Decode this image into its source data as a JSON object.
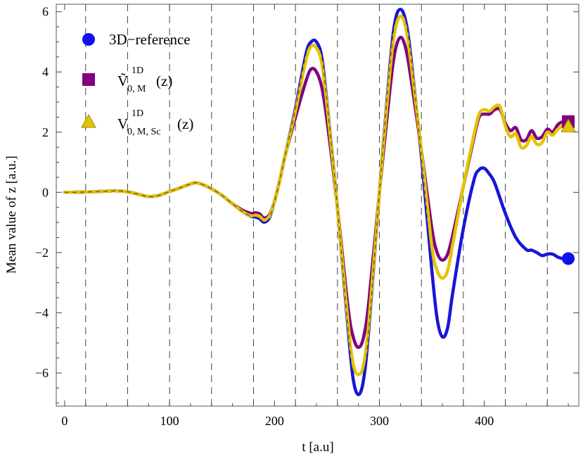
{
  "chart_data": {
    "type": "line",
    "xlabel": "t  [a.u]",
    "ylabel": "Mean  value  of  z    [a.u.]",
    "xlim": [
      -8,
      490
    ],
    "ylim": [
      -7.1,
      6.25
    ],
    "x_ticks": [
      0,
      100,
      200,
      300,
      400
    ],
    "y_ticks": [
      -6,
      -4,
      -2,
      0,
      2,
      4,
      6
    ],
    "x_tick_labels": [
      "0",
      "100",
      "200",
      "300",
      "400"
    ],
    "y_tick_labels": [
      "−6",
      "−4",
      "−2",
      "0",
      "2",
      "4",
      "6"
    ],
    "vertical_dashed_lines": [
      20,
      60,
      100,
      140,
      180,
      220,
      260,
      300,
      340,
      380,
      420,
      460
    ],
    "grid": false,
    "legend": {
      "placement": "top-left",
      "entries": [
        {
          "marker": "circle",
          "color": "#1010ee",
          "text": "3D−reference"
        },
        {
          "marker": "square",
          "color": "#800080",
          "base": "Ṽ",
          "sup": "1D",
          "sub": "0, M",
          "suffix": "(z)"
        },
        {
          "marker": "triangle",
          "color": "#e3c400",
          "base": "V",
          "sup": "1D",
          "sub": "0, M, Sc",
          "suffix": "(z)"
        }
      ]
    },
    "series": [
      {
        "name": "3D−reference",
        "color": "#1010ee",
        "marker": "circle",
        "points": [
          [
            0,
            0
          ],
          [
            20,
            0.01
          ],
          [
            40,
            0.04
          ],
          [
            50,
            0.05
          ],
          [
            60,
            0.02
          ],
          [
            70,
            -0.06
          ],
          [
            80,
            -0.14
          ],
          [
            90,
            -0.1
          ],
          [
            100,
            0.03
          ],
          [
            110,
            0.15
          ],
          [
            120,
            0.28
          ],
          [
            125,
            0.32
          ],
          [
            130,
            0.28
          ],
          [
            140,
            0.12
          ],
          [
            150,
            -0.1
          ],
          [
            160,
            -0.38
          ],
          [
            170,
            -0.65
          ],
          [
            178,
            -0.8
          ],
          [
            182,
            -0.82
          ],
          [
            186,
            -0.88
          ],
          [
            190,
            -0.99
          ],
          [
            195,
            -0.85
          ],
          [
            200,
            -0.3
          ],
          [
            205,
            0.4
          ],
          [
            210,
            1.2
          ],
          [
            220,
            2.8
          ],
          [
            230,
            4.6
          ],
          [
            235,
            5.0
          ],
          [
            240,
            5.0
          ],
          [
            245,
            4.5
          ],
          [
            250,
            3.0
          ],
          [
            260,
            -0.5
          ],
          [
            270,
            -4.5
          ],
          [
            275,
            -6.2
          ],
          [
            280,
            -6.72
          ],
          [
            285,
            -6.2
          ],
          [
            290,
            -4.5
          ],
          [
            300,
            0.0
          ],
          [
            310,
            4.2
          ],
          [
            315,
            5.7
          ],
          [
            320,
            6.08
          ],
          [
            325,
            5.7
          ],
          [
            330,
            4.5
          ],
          [
            340,
            1.2
          ],
          [
            350,
            -2.6
          ],
          [
            355,
            -4.2
          ],
          [
            360,
            -4.8
          ],
          [
            365,
            -4.5
          ],
          [
            370,
            -3.3
          ],
          [
            380,
            -1.2
          ],
          [
            390,
            0.4
          ],
          [
            395,
            0.75
          ],
          [
            400,
            0.8
          ],
          [
            405,
            0.6
          ],
          [
            410,
            0.3
          ],
          [
            420,
            -0.7
          ],
          [
            430,
            -1.5
          ],
          [
            440,
            -1.9
          ],
          [
            445,
            -1.92
          ],
          [
            450,
            -2.0
          ],
          [
            455,
            -2.1
          ],
          [
            460,
            -2.05
          ],
          [
            465,
            -2.05
          ],
          [
            470,
            -2.15
          ],
          [
            475,
            -2.2
          ],
          [
            480,
            -2.2
          ]
        ]
      },
      {
        "name": "Ṽ 1D 0, M (z)",
        "color": "#800080",
        "marker": "square",
        "points": [
          [
            0,
            0
          ],
          [
            20,
            0.01
          ],
          [
            40,
            0.04
          ],
          [
            50,
            0.05
          ],
          [
            60,
            0.02
          ],
          [
            70,
            -0.06
          ],
          [
            80,
            -0.14
          ],
          [
            90,
            -0.1
          ],
          [
            100,
            0.03
          ],
          [
            110,
            0.15
          ],
          [
            120,
            0.28
          ],
          [
            125,
            0.32
          ],
          [
            130,
            0.28
          ],
          [
            140,
            0.12
          ],
          [
            150,
            -0.1
          ],
          [
            160,
            -0.38
          ],
          [
            170,
            -0.6
          ],
          [
            178,
            -0.7
          ],
          [
            182,
            -0.68
          ],
          [
            186,
            -0.72
          ],
          [
            190,
            -0.85
          ],
          [
            195,
            -0.75
          ],
          [
            200,
            -0.3
          ],
          [
            205,
            0.4
          ],
          [
            210,
            1.2
          ],
          [
            220,
            2.5
          ],
          [
            230,
            3.7
          ],
          [
            235,
            4.1
          ],
          [
            240,
            4.0
          ],
          [
            245,
            3.5
          ],
          [
            250,
            2.4
          ],
          [
            260,
            -0.5
          ],
          [
            270,
            -3.8
          ],
          [
            275,
            -4.8
          ],
          [
            280,
            -5.15
          ],
          [
            285,
            -4.8
          ],
          [
            290,
            -3.6
          ],
          [
            300,
            0.0
          ],
          [
            310,
            3.4
          ],
          [
            315,
            4.7
          ],
          [
            320,
            5.15
          ],
          [
            325,
            4.8
          ],
          [
            330,
            3.8
          ],
          [
            340,
            1.4
          ],
          [
            350,
            -1.2
          ],
          [
            355,
            -2.0
          ],
          [
            360,
            -2.25
          ],
          [
            365,
            -2.05
          ],
          [
            370,
            -1.4
          ],
          [
            380,
            0.2
          ],
          [
            390,
            1.8
          ],
          [
            395,
            2.5
          ],
          [
            400,
            2.6
          ],
          [
            405,
            2.6
          ],
          [
            410,
            2.75
          ],
          [
            415,
            2.75
          ],
          [
            420,
            2.3
          ],
          [
            425,
            2.05
          ],
          [
            430,
            2.15
          ],
          [
            435,
            1.75
          ],
          [
            440,
            1.75
          ],
          [
            445,
            2.05
          ],
          [
            450,
            1.8
          ],
          [
            455,
            1.85
          ],
          [
            460,
            2.1
          ],
          [
            465,
            2.0
          ],
          [
            470,
            2.25
          ],
          [
            475,
            2.35
          ],
          [
            480,
            2.35
          ]
        ]
      },
      {
        "name": "V 1D 0, M, Sc (z)",
        "color": "#e3c400",
        "marker": "triangle",
        "points": [
          [
            0,
            0
          ],
          [
            20,
            0.01
          ],
          [
            40,
            0.04
          ],
          [
            50,
            0.05
          ],
          [
            60,
            0.02
          ],
          [
            70,
            -0.06
          ],
          [
            80,
            -0.14
          ],
          [
            90,
            -0.1
          ],
          [
            100,
            0.03
          ],
          [
            110,
            0.15
          ],
          [
            120,
            0.28
          ],
          [
            125,
            0.32
          ],
          [
            130,
            0.28
          ],
          [
            140,
            0.12
          ],
          [
            150,
            -0.1
          ],
          [
            160,
            -0.38
          ],
          [
            170,
            -0.65
          ],
          [
            178,
            -0.78
          ],
          [
            182,
            -0.76
          ],
          [
            186,
            -0.8
          ],
          [
            190,
            -0.92
          ],
          [
            195,
            -0.8
          ],
          [
            200,
            -0.3
          ],
          [
            205,
            0.4
          ],
          [
            210,
            1.2
          ],
          [
            220,
            2.7
          ],
          [
            230,
            4.4
          ],
          [
            235,
            4.85
          ],
          [
            240,
            4.8
          ],
          [
            245,
            4.3
          ],
          [
            250,
            2.9
          ],
          [
            260,
            -0.5
          ],
          [
            270,
            -4.3
          ],
          [
            275,
            -5.7
          ],
          [
            280,
            -6.05
          ],
          [
            285,
            -5.7
          ],
          [
            290,
            -4.3
          ],
          [
            300,
            0.0
          ],
          [
            310,
            4.0
          ],
          [
            315,
            5.4
          ],
          [
            320,
            5.85
          ],
          [
            325,
            5.5
          ],
          [
            330,
            4.3
          ],
          [
            340,
            1.4
          ],
          [
            350,
            -1.8
          ],
          [
            355,
            -2.6
          ],
          [
            360,
            -2.85
          ],
          [
            365,
            -2.6
          ],
          [
            370,
            -1.7
          ],
          [
            380,
            0.2
          ],
          [
            390,
            1.9
          ],
          [
            395,
            2.6
          ],
          [
            400,
            2.75
          ],
          [
            405,
            2.7
          ],
          [
            410,
            2.85
          ],
          [
            415,
            2.85
          ],
          [
            420,
            2.2
          ],
          [
            425,
            1.85
          ],
          [
            430,
            1.95
          ],
          [
            435,
            1.5
          ],
          [
            440,
            1.55
          ],
          [
            445,
            1.85
          ],
          [
            450,
            1.6
          ],
          [
            455,
            1.65
          ],
          [
            460,
            2.0
          ],
          [
            465,
            1.9
          ],
          [
            470,
            2.1
          ],
          [
            475,
            2.2
          ],
          [
            480,
            2.2
          ]
        ]
      }
    ]
  }
}
